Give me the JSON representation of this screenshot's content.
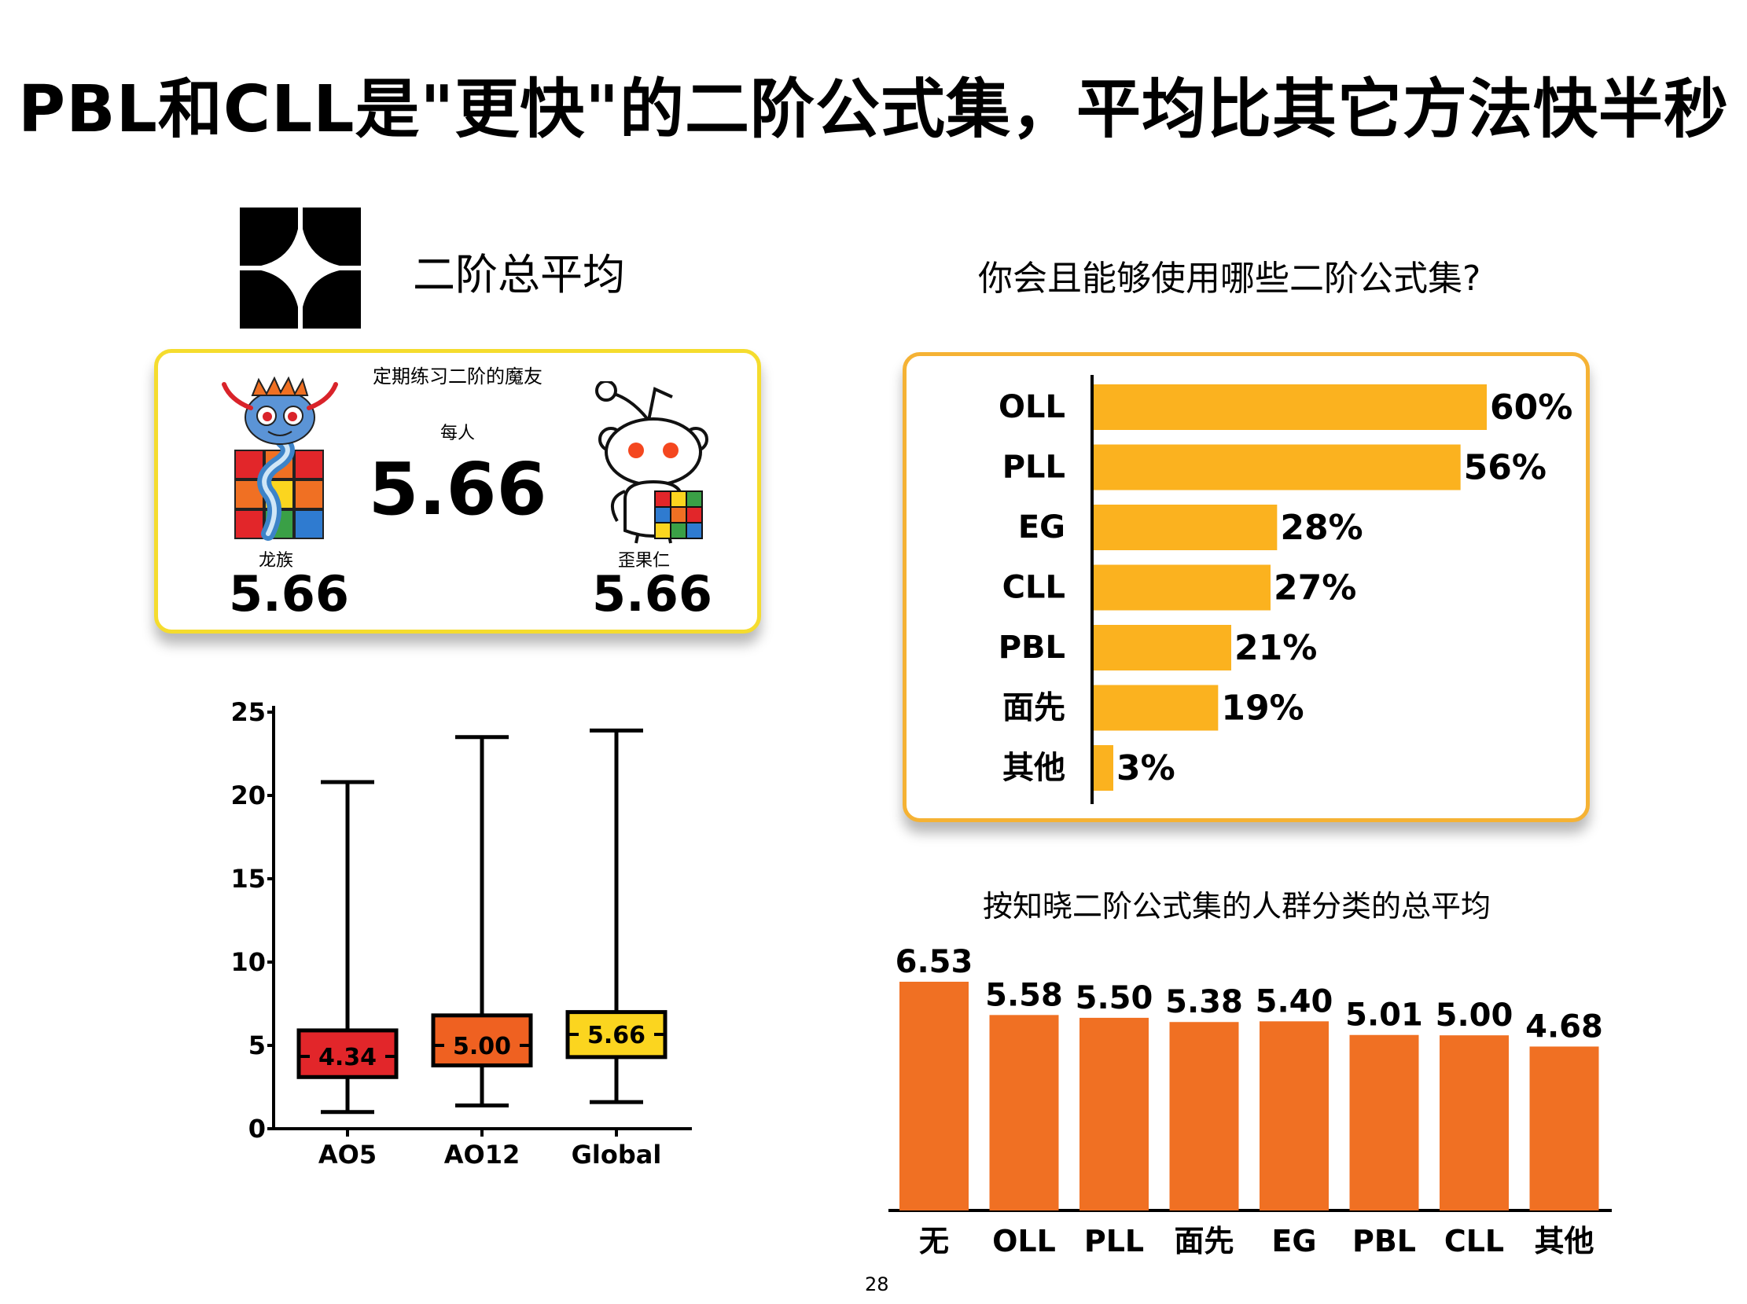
{
  "page": {
    "title": "PBL和CLL是\"更快\"的二阶公式集，平均比其它方法快半秒",
    "section_title": "二阶总平均",
    "page_number": "28"
  },
  "stats_card": {
    "caption": "定期练习二阶的魔友",
    "per_person_label": "每人",
    "per_person_value": "5.66",
    "dragon": {
      "label": "龙族",
      "value": "5.66"
    },
    "reddit": {
      "label": "歪果仁",
      "value": "5.66"
    }
  },
  "colors": {
    "survey_bar": "#fbb21f",
    "avg_bar": "#f07023",
    "box_ao5": "#e2262a",
    "box_ao12": "#ef6121",
    "box_global": "#fbd51f",
    "stats_card_border": "#f5dc2e",
    "bar_card_border": "#f5b234"
  },
  "chart_data": [
    {
      "id": "boxplot",
      "type": "box",
      "categories": [
        "AO5",
        "AO12",
        "Global"
      ],
      "ylim": [
        0,
        25
      ],
      "yticks": [
        0,
        5,
        10,
        15,
        20,
        25
      ],
      "boxes": [
        {
          "name": "AO5",
          "min": 1.0,
          "q1": 3.1,
          "median": 4.34,
          "q3": 5.9,
          "max": 20.8,
          "label": "4.34",
          "color": "#e2262a"
        },
        {
          "name": "AO12",
          "min": 1.4,
          "q1": 3.8,
          "median": 5.0,
          "q3": 6.8,
          "max": 23.5,
          "label": "5.00",
          "color": "#ef6121"
        },
        {
          "name": "Global",
          "min": 1.6,
          "q1": 4.3,
          "median": 5.66,
          "q3": 7.0,
          "max": 23.9,
          "label": "5.66",
          "color": "#fbd51f"
        }
      ]
    },
    {
      "id": "survey",
      "type": "bar",
      "orientation": "horizontal",
      "title": "你会且能够使用哪些二阶公式集?",
      "categories": [
        "OLL",
        "PLL",
        "EG",
        "CLL",
        "PBL",
        "面先",
        "其他"
      ],
      "values": [
        60,
        56,
        28,
        27,
        21,
        19,
        3
      ],
      "value_labels": [
        "60%",
        "56%",
        "28%",
        "27%",
        "21%",
        "19%",
        "3%"
      ],
      "xlim": [
        0,
        60
      ]
    },
    {
      "id": "averages",
      "type": "bar",
      "title": "按知晓二阶公式集的人群分类的总平均",
      "categories": [
        "无",
        "OLL",
        "PLL",
        "面先",
        "EG",
        "PBL",
        "CLL",
        "其他"
      ],
      "values": [
        6.53,
        5.58,
        5.5,
        5.38,
        5.4,
        5.01,
        5.0,
        4.68
      ],
      "value_labels": [
        "6.53",
        "5.58",
        "5.50",
        "5.38",
        "5.40",
        "5.01",
        "5.00",
        "4.68"
      ]
    }
  ]
}
